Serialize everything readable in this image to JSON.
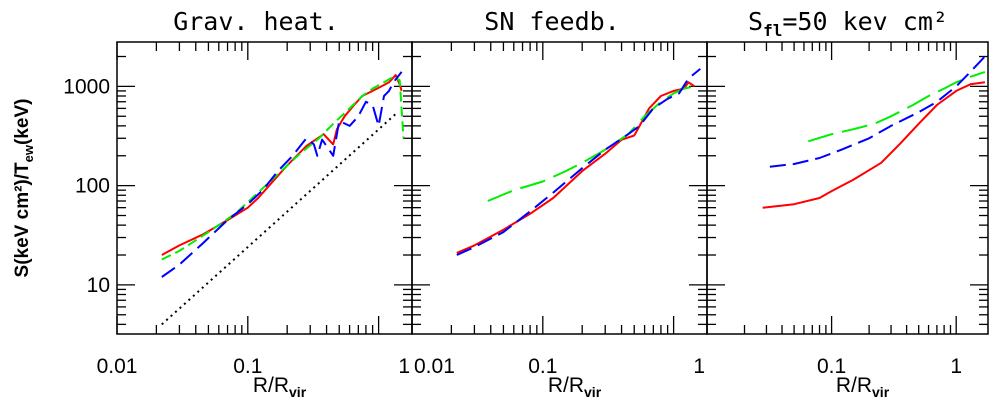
{
  "chart_data": [
    {
      "type": "line",
      "title": "Grav. heat.",
      "xlabel": "R/R",
      "xlabel_sub": "vir",
      "ylabel": "S(keV cm²)/T",
      "ylabel_sub": "ew",
      "ylabel_unit": "(keV)",
      "xscale": "log",
      "yscale": "log",
      "xlim": [
        0.01,
        1.8
      ],
      "ylim": [
        3.2,
        2800
      ],
      "xticks": [
        {
          "v": 0.01,
          "label": "0.01"
        },
        {
          "v": 0.1,
          "label": "0.1"
        },
        {
          "v": 1,
          "label": "1"
        }
      ],
      "yticks": [
        {
          "v": 10,
          "label": "10"
        },
        {
          "v": 100,
          "label": "100"
        },
        {
          "v": 1000,
          "label": "1000"
        }
      ],
      "series": [
        {
          "color": "#ff0000",
          "dash": "solid",
          "points": [
            [
              0.022,
              20
            ],
            [
              0.03,
              25
            ],
            [
              0.045,
              32
            ],
            [
              0.07,
              45
            ],
            [
              0.1,
              60
            ],
            [
              0.12,
              75
            ],
            [
              0.16,
              115
            ],
            [
              0.2,
              160
            ],
            [
              0.28,
              250
            ],
            [
              0.38,
              330
            ],
            [
              0.45,
              260
            ],
            [
              0.48,
              370
            ],
            [
              0.55,
              500
            ],
            [
              0.65,
              650
            ],
            [
              0.75,
              800
            ],
            [
              0.9,
              900
            ],
            [
              1.05,
              1000
            ],
            [
              1.2,
              1100
            ],
            [
              1.35,
              1300
            ],
            [
              1.45,
              1050
            ],
            [
              1.5,
              900
            ]
          ]
        },
        {
          "color": "#00ee00",
          "dash": "10 5",
          "points": [
            [
              0.022,
              18
            ],
            [
              0.03,
              22
            ],
            [
              0.05,
              34
            ],
            [
              0.08,
              52
            ],
            [
              0.12,
              85
            ],
            [
              0.18,
              140
            ],
            [
              0.25,
              210
            ],
            [
              0.35,
              300
            ],
            [
              0.45,
              420
            ],
            [
              0.6,
              600
            ],
            [
              0.75,
              800
            ],
            [
              0.9,
              950
            ],
            [
              1.1,
              1100
            ],
            [
              1.3,
              1250
            ],
            [
              1.45,
              1150
            ],
            [
              1.55,
              300
            ]
          ]
        },
        {
          "color": "#0000ff",
          "dash": "16 7",
          "points": [
            [
              0.022,
              12
            ],
            [
              0.03,
              16
            ],
            [
              0.045,
              26
            ],
            [
              0.07,
              45
            ],
            [
              0.1,
              65
            ],
            [
              0.13,
              90
            ],
            [
              0.17,
              140
            ],
            [
              0.22,
              200
            ],
            [
              0.28,
              300
            ],
            [
              0.32,
              260
            ],
            [
              0.34,
              200
            ],
            [
              0.37,
              290
            ],
            [
              0.4,
              250
            ],
            [
              0.45,
              200
            ],
            [
              0.5,
              450
            ],
            [
              0.6,
              400
            ],
            [
              0.7,
              500
            ],
            [
              0.8,
              700
            ],
            [
              0.9,
              650
            ],
            [
              1.0,
              400
            ],
            [
              1.1,
              800
            ],
            [
              1.2,
              900
            ],
            [
              1.3,
              1100
            ],
            [
              1.5,
              1400
            ]
          ]
        },
        {
          "color": "#000000",
          "dash": "2 4",
          "points": [
            [
              0.022,
              4
            ],
            [
              1.4,
              550
            ]
          ]
        }
      ]
    },
    {
      "type": "line",
      "title": "SN feedb.",
      "xlabel": "R/R",
      "xlabel_sub": "vir",
      "xscale": "log",
      "yscale": "log",
      "xlim": [
        0.01,
        1.8
      ],
      "ylim": [
        3.2,
        2800
      ],
      "xticks": [
        {
          "v": 0.01,
          "label": "0.01"
        },
        {
          "v": 0.1,
          "label": "0.1"
        },
        {
          "v": 1,
          "label": "1"
        }
      ],
      "series": [
        {
          "color": "#ff0000",
          "dash": "solid",
          "points": [
            [
              0.022,
              21
            ],
            [
              0.03,
              25
            ],
            [
              0.05,
              36
            ],
            [
              0.08,
              52
            ],
            [
              0.12,
              75
            ],
            [
              0.2,
              140
            ],
            [
              0.3,
              210
            ],
            [
              0.4,
              290
            ],
            [
              0.5,
              320
            ],
            [
              0.55,
              400
            ],
            [
              0.65,
              600
            ],
            [
              0.8,
              800
            ],
            [
              1.0,
              900
            ],
            [
              1.2,
              950
            ],
            [
              1.3,
              1100
            ],
            [
              1.45,
              1000
            ]
          ]
        },
        {
          "color": "#00ee00",
          "dash": "26 9",
          "points": [
            [
              0.038,
              70
            ],
            [
              0.06,
              90
            ],
            [
              0.1,
              110
            ],
            [
              0.15,
              140
            ],
            [
              0.2,
              170
            ],
            [
              0.3,
              230
            ],
            [
              0.45,
              330
            ],
            [
              0.6,
              500
            ],
            [
              0.8,
              700
            ],
            [
              1.0,
              850
            ],
            [
              1.2,
              950
            ],
            [
              1.45,
              1000
            ]
          ]
        },
        {
          "color": "#0000ff",
          "dash": "16 7",
          "points": [
            [
              0.022,
              20
            ],
            [
              0.03,
              24
            ],
            [
              0.05,
              34
            ],
            [
              0.08,
              55
            ],
            [
              0.12,
              85
            ],
            [
              0.2,
              150
            ],
            [
              0.3,
              230
            ],
            [
              0.45,
              330
            ],
            [
              0.55,
              400
            ],
            [
              0.7,
              600
            ],
            [
              0.9,
              750
            ],
            [
              1.1,
              850
            ],
            [
              1.3,
              1200
            ],
            [
              1.6,
              1500
            ]
          ]
        }
      ]
    },
    {
      "type": "line",
      "title": "S",
      "title_sub": "fl",
      "title_rest": "=50 kev cm²",
      "xlabel": "R/R",
      "xlabel_sub": "vir",
      "xscale": "log",
      "yscale": "log",
      "xlim": [
        0.01,
        1.8
      ],
      "ylim": [
        3.2,
        2800
      ],
      "xticks": [
        {
          "v": 0.1,
          "label": "0.1"
        },
        {
          "v": 1,
          "label": "1"
        }
      ],
      "series": [
        {
          "color": "#ff0000",
          "dash": "solid",
          "points": [
            [
              0.028,
              60
            ],
            [
              0.05,
              65
            ],
            [
              0.08,
              75
            ],
            [
              0.1,
              88
            ],
            [
              0.15,
              115
            ],
            [
              0.25,
              170
            ],
            [
              0.35,
              260
            ],
            [
              0.5,
              420
            ],
            [
              0.7,
              650
            ],
            [
              1.0,
              900
            ],
            [
              1.3,
              1050
            ],
            [
              1.7,
              1100
            ]
          ]
        },
        {
          "color": "#00ee00",
          "dash": "26 9",
          "points": [
            [
              0.065,
              280
            ],
            [
              0.1,
              330
            ],
            [
              0.15,
              370
            ],
            [
              0.22,
              420
            ],
            [
              0.3,
              500
            ],
            [
              0.45,
              650
            ],
            [
              0.6,
              800
            ],
            [
              0.8,
              950
            ],
            [
              1.0,
              1100
            ],
            [
              1.3,
              1250
            ],
            [
              1.7,
              1400
            ]
          ]
        },
        {
          "color": "#0000ff",
          "dash": "16 7",
          "points": [
            [
              0.032,
              155
            ],
            [
              0.05,
              165
            ],
            [
              0.08,
              190
            ],
            [
              0.12,
              230
            ],
            [
              0.2,
              300
            ],
            [
              0.3,
              400
            ],
            [
              0.5,
              550
            ],
            [
              0.7,
              700
            ],
            [
              1.0,
              1000
            ],
            [
              1.3,
              1400
            ],
            [
              1.7,
              2000
            ]
          ]
        }
      ]
    }
  ]
}
